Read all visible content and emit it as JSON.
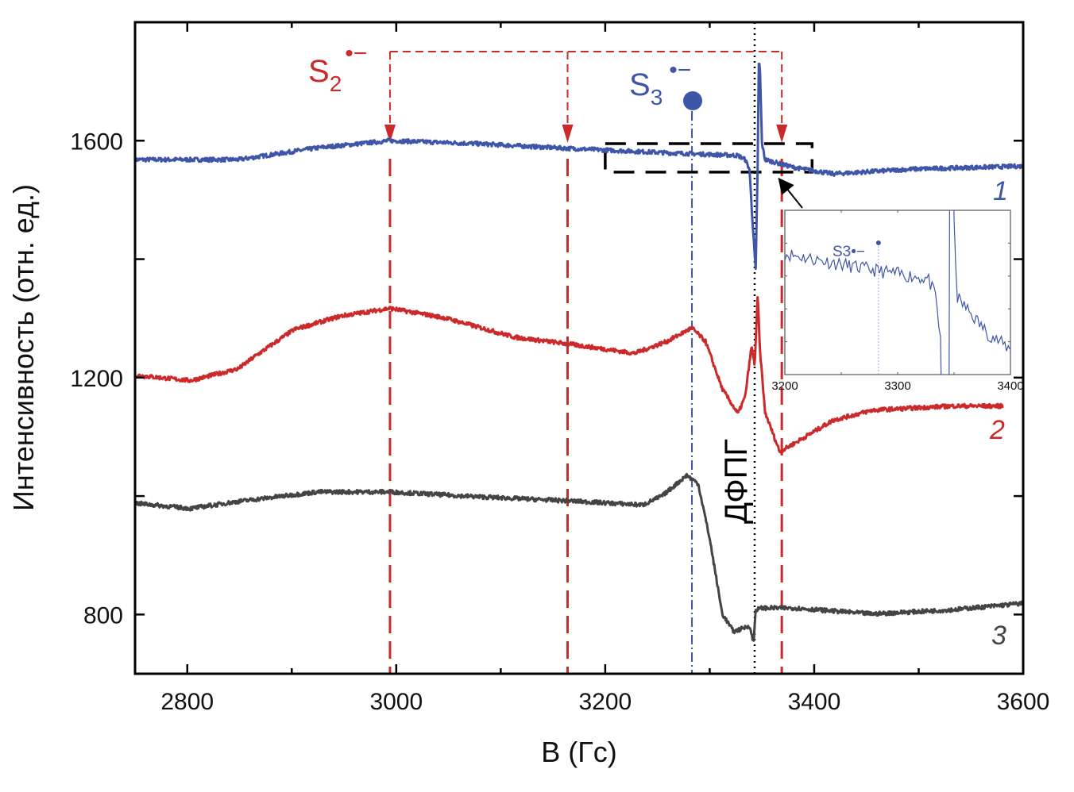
{
  "chart_data": {
    "type": "line",
    "xlabel": "B (Гс)",
    "ylabel": "Интенсивность (отн. ед.)",
    "xlim": [
      2750,
      3600
    ],
    "ylim": [
      700,
      1800
    ],
    "xticks": [
      2800,
      3000,
      3200,
      3400,
      3600
    ],
    "yticks": [
      800,
      1200,
      1600
    ],
    "grid": false,
    "series": [
      {
        "name": "1",
        "color": "#3f56a8",
        "x": [
          2750,
          2849,
          2925,
          2994,
          3076,
          3164,
          3266,
          3327,
          3334,
          3338,
          3342,
          3344,
          3346,
          3347,
          3348,
          3350,
          3353,
          3380,
          3418,
          3494,
          3600
        ],
        "y": [
          1568,
          1568,
          1588,
          1600,
          1595,
          1587,
          1579,
          1575,
          1568,
          1552,
          1435,
          1381,
          1568,
          1728,
          1728,
          1595,
          1568,
          1555,
          1544,
          1552,
          1557
        ]
      },
      {
        "name": "2",
        "color": "#cc2a2a",
        "x": [
          2750,
          2803,
          2849,
          2864,
          2902,
          2947,
          2994,
          3046,
          3114,
          3164,
          3228,
          3259,
          3283,
          3296,
          3312,
          3327,
          3334,
          3340,
          3343,
          3346,
          3348,
          3353,
          3367,
          3380,
          3418,
          3456,
          3532,
          3581
        ],
        "y": [
          1204,
          1195,
          1215,
          1235,
          1281,
          1304,
          1317,
          1301,
          1268,
          1257,
          1241,
          1261,
          1284,
          1261,
          1181,
          1139,
          1168,
          1253,
          1221,
          1341,
          1248,
          1141,
          1075,
          1088,
          1128,
          1145,
          1152,
          1152
        ]
      },
      {
        "name": "3",
        "color": "#444444",
        "x": [
          2750,
          2803,
          2849,
          2925,
          2994,
          3076,
          3164,
          3236,
          3255,
          3278,
          3289,
          3300,
          3312,
          3323,
          3338,
          3342,
          3344,
          3350,
          3380,
          3456,
          3532,
          3600
        ],
        "y": [
          988,
          979,
          991,
          1007,
          1007,
          999,
          992,
          985,
          1001,
          1035,
          1021,
          928,
          801,
          771,
          781,
          752,
          808,
          811,
          811,
          801,
          808,
          819
        ]
      }
    ],
    "markers": {
      "s2_positions": [
        2994,
        3164,
        3369
      ],
      "s3_position": 3283,
      "dpph_position": 3343
    },
    "annotations": {
      "s2_label": "S",
      "s2_sub": "2",
      "s2_sup": "•−",
      "s3_label": "S",
      "s3_sub": "3",
      "s3_sup": "•−",
      "dpph_label": "ДФПГ",
      "curve_labels": [
        "1",
        "2",
        "3"
      ]
    },
    "inset": {
      "xlim": [
        3200,
        3400
      ],
      "ylim": [
        1540,
        1600
      ],
      "xticks": [
        3200,
        3300,
        3400
      ],
      "label": "S3•−",
      "zoom_box": {
        "x": [
          3200,
          3398
        ],
        "y": [
          1547,
          1595
        ]
      }
    },
    "colors": {
      "red": "#cc2a2a",
      "blue": "#3f56a8",
      "gray": "#444444",
      "black": "#000000"
    }
  }
}
